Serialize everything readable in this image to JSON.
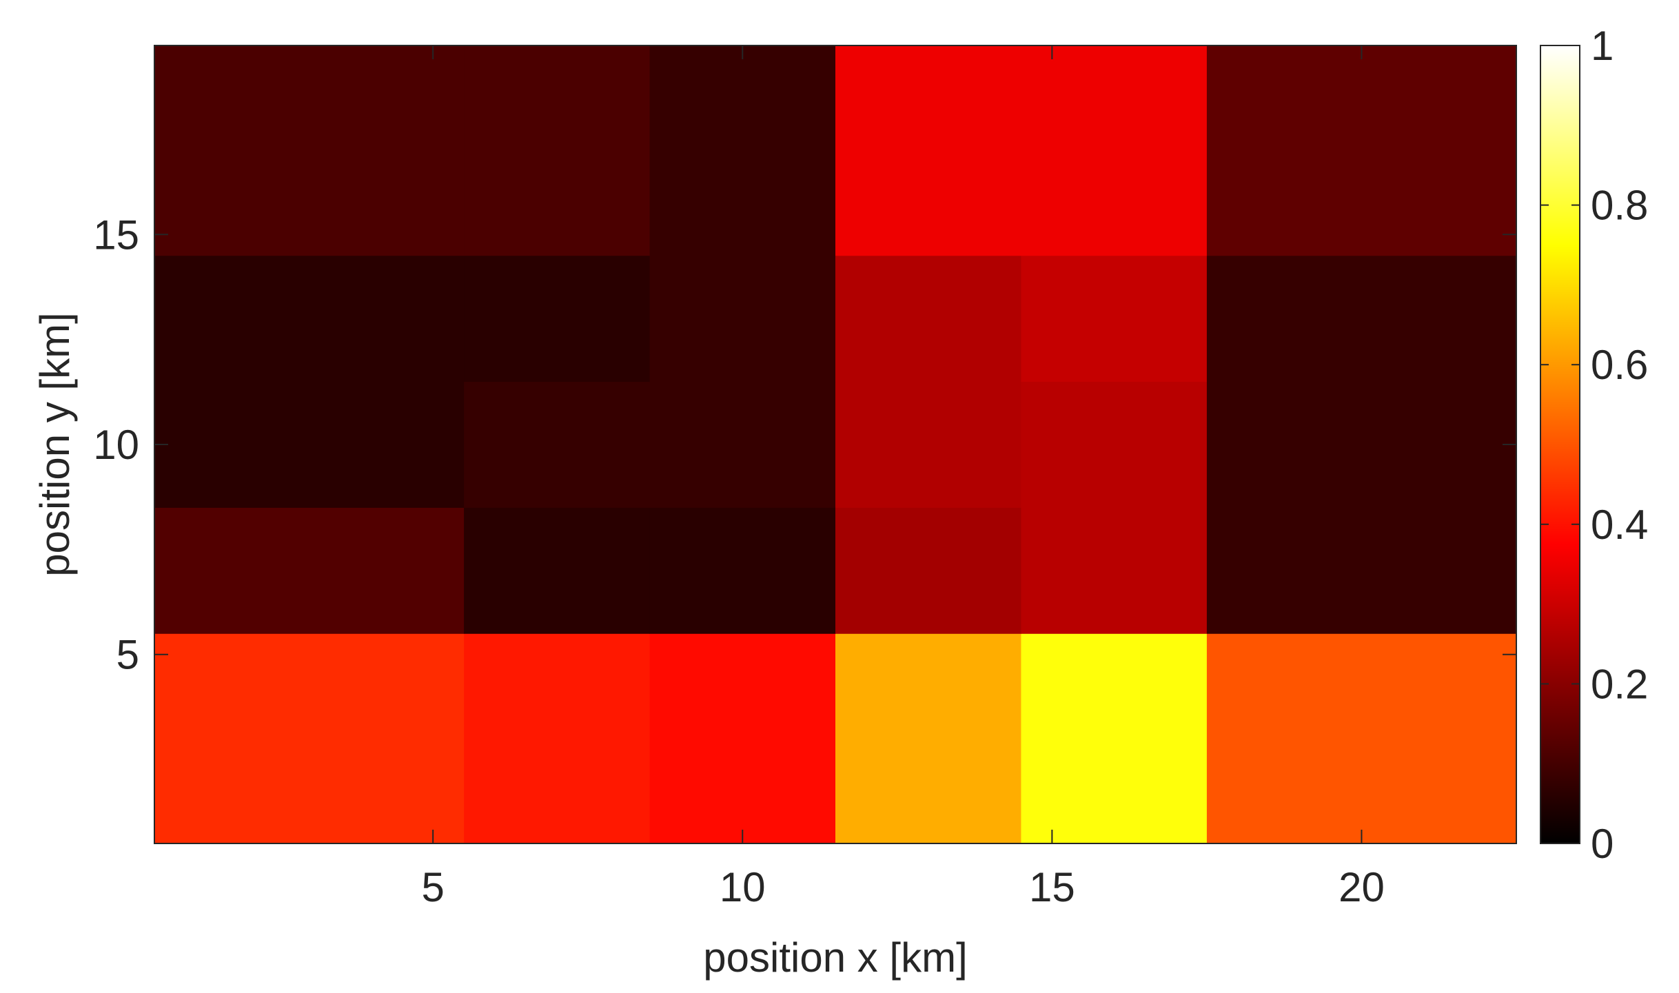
{
  "chart_data": {
    "type": "heatmap",
    "xlabel": "position x [km]",
    "ylabel": "position y [km]",
    "colormap": "hot",
    "clim": [
      0,
      1
    ],
    "x_ticks": [
      5,
      10,
      15,
      20
    ],
    "y_ticks": [
      5,
      10,
      15
    ],
    "colorbar_ticks": [
      0,
      0.2,
      0.4,
      0.6,
      0.8,
      1
    ],
    "colorbar_tick_labels": [
      "0",
      "0.2",
      "0.4",
      "0.6",
      "0.8",
      "1"
    ],
    "x_edges": [
      0.5,
      5.5,
      8.5,
      11.5,
      14.5,
      17.5,
      22.5
    ],
    "y_edges": [
      0.5,
      5.5,
      8.5,
      11.5,
      14.5,
      19.5
    ],
    "xlim": [
      0.5,
      22.5
    ],
    "ylim": [
      0.5,
      19.5
    ],
    "values": [
      [
        0.44,
        0.41,
        0.39,
        0.63,
        0.76,
        0.5
      ],
      [
        0.12,
        0.06,
        0.06,
        0.24,
        0.27,
        0.08
      ],
      [
        0.06,
        0.08,
        0.08,
        0.26,
        0.27,
        0.08
      ],
      [
        0.06,
        0.06,
        0.08,
        0.26,
        0.29,
        0.08
      ],
      [
        0.11,
        0.11,
        0.08,
        0.35,
        0.35,
        0.14
      ]
    ]
  },
  "colors": {
    "axis": "#262626",
    "background": "#ffffff"
  }
}
